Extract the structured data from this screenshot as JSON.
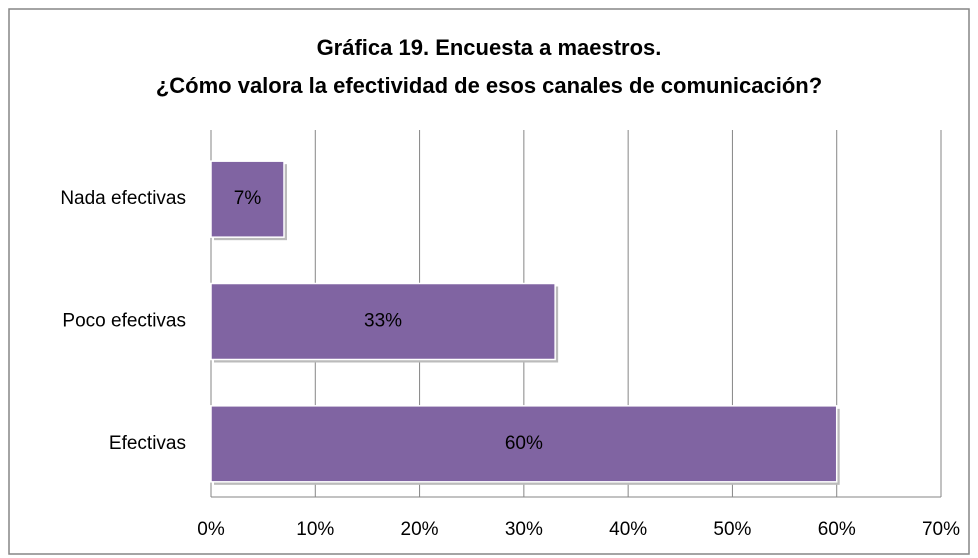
{
  "chart_data": {
    "type": "bar",
    "orientation": "horizontal",
    "title": "Gráfica 19. Encuesta a maestros.",
    "subtitle": "¿Cómo valora la efectividad de esos canales de comunicación?",
    "categories": [
      "Nada efectivas",
      "Poco efectivas",
      "Efectivas"
    ],
    "values": [
      7,
      33,
      60
    ],
    "value_labels": [
      "7%",
      "33%",
      "60%"
    ],
    "color": "#8064a2",
    "xlim": [
      0,
      70
    ],
    "xticks": [
      {
        "value": 0,
        "label": "0%"
      },
      {
        "value": 10,
        "label": "10%"
      },
      {
        "value": 20,
        "label": "20%"
      },
      {
        "value": 30,
        "label": "30%"
      },
      {
        "value": 40,
        "label": "40%"
      },
      {
        "value": 50,
        "label": "50%"
      },
      {
        "value": 60,
        "label": "60%"
      },
      {
        "value": 70,
        "label": "70%"
      }
    ],
    "grid": true
  }
}
